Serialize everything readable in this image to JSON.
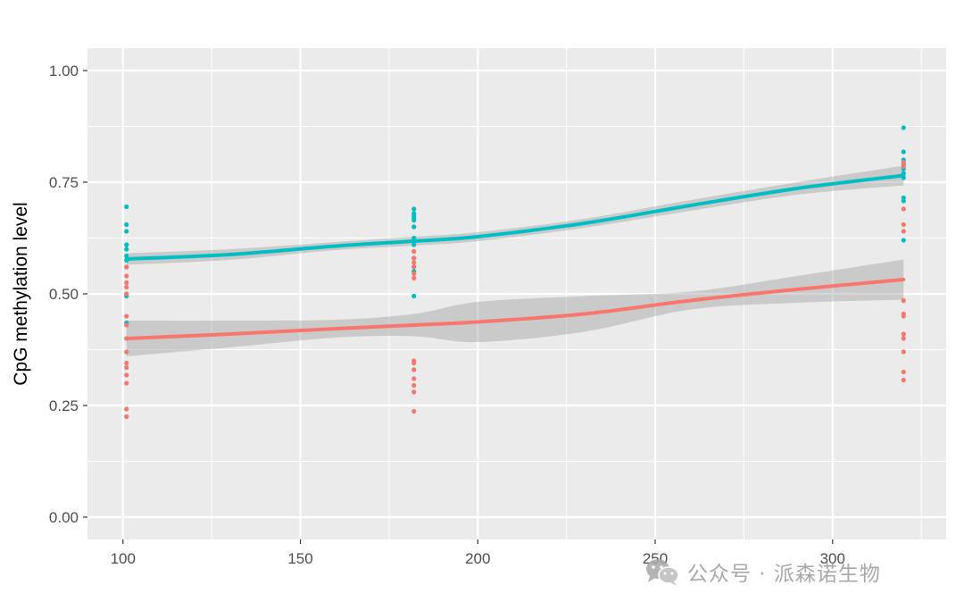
{
  "chart_data": {
    "type": "scatter",
    "title": "",
    "xlabel": "",
    "ylabel": "CpG methylation level",
    "xlim": [
      90,
      332
    ],
    "ylim": [
      -0.05,
      1.05
    ],
    "x_ticks": [
      100,
      150,
      200,
      250,
      300
    ],
    "x_tick_labels": [
      "100",
      "150",
      "200",
      "250",
      "300"
    ],
    "y_ticks": [
      0,
      0.25,
      0.5,
      0.75,
      1
    ],
    "y_tick_labels": [
      "0.00",
      "0.25",
      "0.50",
      "0.75",
      "1.00"
    ],
    "grid": true,
    "background": "#ebebeb",
    "series": [
      {
        "color": "#00bfc4",
        "points": [
          {
            "x": 101,
            "y": [
              0.695,
              0.655,
              0.64,
              0.61,
              0.6,
              0.585,
              0.575,
              0.56,
              0.495,
              0.435
            ]
          },
          {
            "x": 182,
            "y": [
              0.69,
              0.68,
              0.675,
              0.67,
              0.665,
              0.65,
              0.625,
              0.61,
              0.58,
              0.55,
              0.495
            ]
          },
          {
            "x": 320,
            "y": [
              0.872,
              0.818,
              0.8,
              0.79,
              0.78,
              0.77,
              0.76,
              0.715,
              0.708,
              0.62
            ]
          }
        ],
        "smooth": [
          [
            101,
            0.578
          ],
          [
            130,
            0.588
          ],
          [
            160,
            0.607
          ],
          [
            182,
            0.618
          ],
          [
            200,
            0.628
          ],
          [
            230,
            0.658
          ],
          [
            260,
            0.698
          ],
          [
            290,
            0.736
          ],
          [
            320,
            0.765
          ]
        ],
        "band": [
          0.013,
          0.012,
          0.009,
          0.01,
          0.01,
          0.01,
          0.012,
          0.014,
          0.022
        ]
      },
      {
        "color": "#f8766d",
        "points": [
          {
            "x": 101,
            "y": [
              0.56,
              0.54,
              0.525,
              0.515,
              0.5,
              0.45,
              0.43,
              0.4,
              0.37,
              0.345,
              0.335,
              0.318,
              0.3,
              0.242,
              0.225
            ]
          },
          {
            "x": 182,
            "y": [
              0.595,
              0.58,
              0.57,
              0.56,
              0.545,
              0.535,
              0.35,
              0.345,
              0.33,
              0.31,
              0.295,
              0.28,
              0.237
            ]
          },
          {
            "x": 320,
            "y": [
              0.795,
              0.785,
              0.69,
              0.655,
              0.64,
              0.485,
              0.455,
              0.45,
              0.41,
              0.4,
              0.37,
              0.325,
              0.307
            ]
          }
        ],
        "smooth": [
          [
            101,
            0.4
          ],
          [
            130,
            0.41
          ],
          [
            160,
            0.422
          ],
          [
            182,
            0.43
          ],
          [
            200,
            0.437
          ],
          [
            230,
            0.455
          ],
          [
            260,
            0.485
          ],
          [
            290,
            0.51
          ],
          [
            320,
            0.532
          ]
        ],
        "band": [
          0.04,
          0.03,
          0.02,
          0.025,
          0.045,
          0.04,
          0.02,
          0.03,
          0.045
        ]
      }
    ]
  },
  "watermark": {
    "text": "公众号 · 派森诺生物",
    "icon": "wechat-icon"
  }
}
